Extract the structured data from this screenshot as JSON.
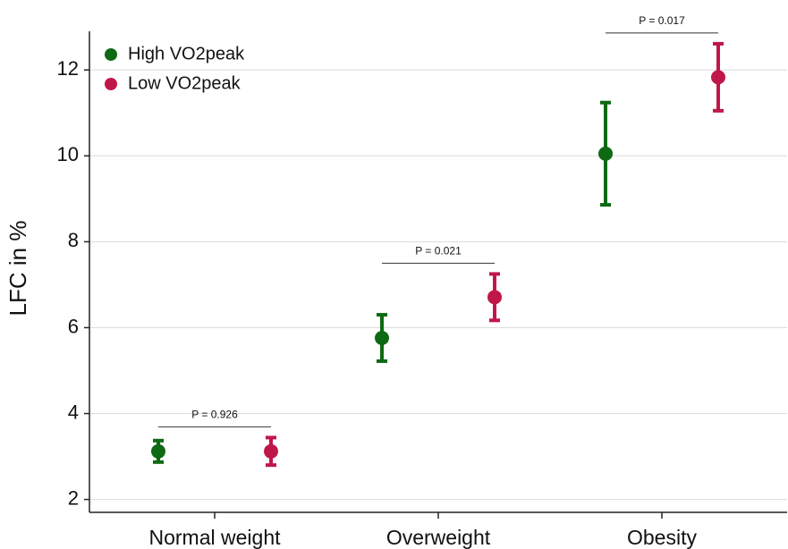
{
  "chart_data": {
    "type": "errorbar",
    "y_label": "LFC in %",
    "categories": [
      "Normal weight",
      "Overweight",
      "Obesity"
    ],
    "series": [
      {
        "name": "High VO2peak",
        "color": "#0d6a12",
        "values": [
          3.12,
          5.76,
          10.05
        ],
        "errors": [
          0.25,
          0.54,
          1.19
        ]
      },
      {
        "name": "Low VO2peak",
        "color": "#c0174a",
        "values": [
          3.12,
          6.71,
          11.83
        ],
        "errors": [
          0.32,
          0.54,
          0.78
        ]
      }
    ],
    "annotations": [
      "P = 0.926",
      "P = 0.021",
      "P = 0.017"
    ],
    "ylim": [
      1.7,
      12.9
    ],
    "yticks": [
      2,
      4,
      6,
      8,
      10,
      12
    ],
    "grid": true,
    "legend": "top-left"
  }
}
